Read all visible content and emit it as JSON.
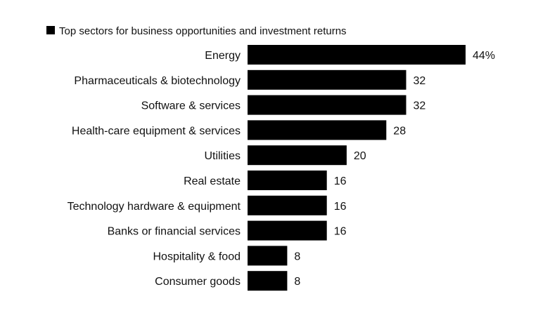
{
  "chart_data": {
    "type": "bar",
    "orientation": "horizontal",
    "title": "",
    "xlabel": "",
    "ylabel": "",
    "legend": {
      "entries": [
        "Top sectors for business opportunities and investment returns"
      ],
      "placement": "top-left"
    },
    "categories": [
      "Energy",
      "Pharmaceuticals & biotechnology",
      "Software & services",
      "Health-care equipment & services",
      "Utilities",
      "Real estate",
      "Technology hardware & equipment",
      "Banks or financial services",
      "Hospitality & food",
      "Consumer goods"
    ],
    "values": [
      44,
      32,
      32,
      28,
      20,
      16,
      16,
      16,
      8,
      8
    ],
    "value_labels": [
      "44%",
      "32",
      "32",
      "28",
      "20",
      "16",
      "16",
      "16",
      "8",
      "8"
    ],
    "xlim": [
      0,
      44
    ],
    "grid": false,
    "bar_color": "#000000"
  }
}
